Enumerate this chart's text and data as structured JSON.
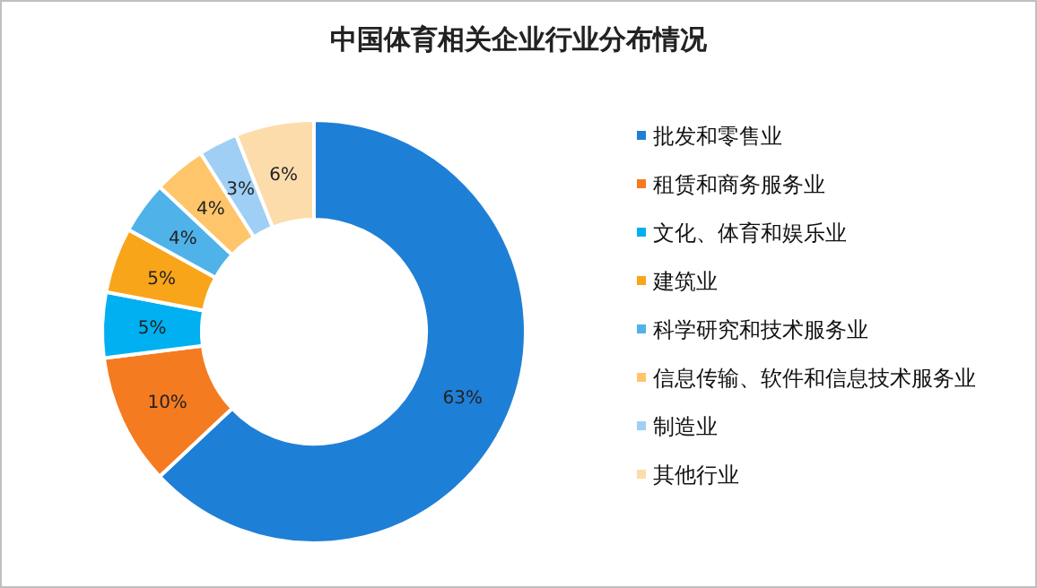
{
  "chart_data": {
    "type": "donut",
    "title": "中国体育相关企业行业分布情况",
    "categories": [
      "批发和零售业",
      "租赁和商务服务业",
      "文化、体育和娱乐业",
      "建筑业",
      "科学研究和技术服务业",
      "信息传输、软件和信息技术服务业",
      "制造业",
      "其他行业"
    ],
    "values": [
      63,
      10,
      5,
      5,
      4,
      4,
      3,
      6
    ],
    "colors": [
      "#1e7fd6",
      "#f47b20",
      "#00b0f0",
      "#f9a51a",
      "#4fb3ea",
      "#fec56a",
      "#9fcff4",
      "#fddcac"
    ],
    "value_labels": [
      "63%",
      "10%",
      "5%",
      "5%",
      "4%",
      "4%",
      "3%",
      "6%"
    ],
    "legend": "right"
  }
}
